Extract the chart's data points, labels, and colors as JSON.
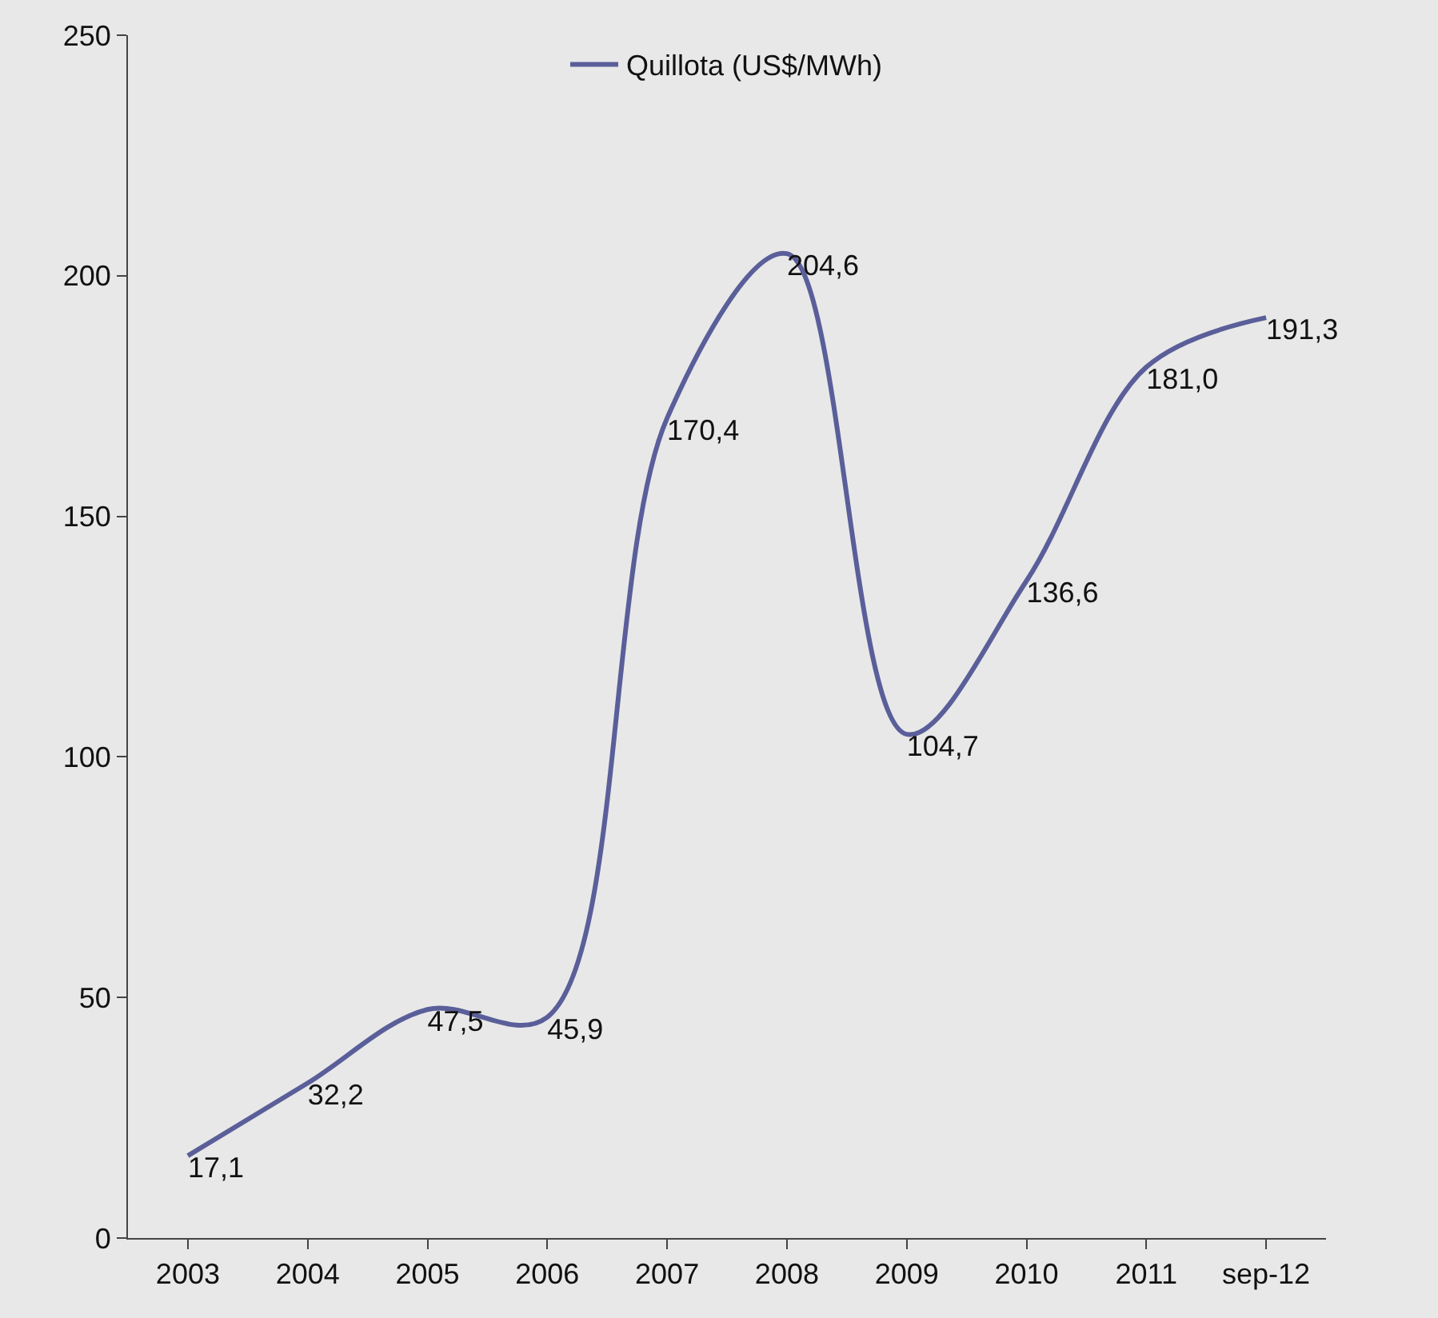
{
  "chart_data": {
    "type": "line",
    "categories": [
      "2003",
      "2004",
      "2005",
      "2006",
      "2007",
      "2008",
      "2009",
      "2010",
      "2011",
      "sep-12"
    ],
    "series": [
      {
        "name": "Quillota (US$/MWh)",
        "color": "#5a5f9a",
        "values": [
          17.1,
          32.2,
          47.5,
          45.9,
          170.4,
          204.6,
          104.7,
          136.6,
          181.0,
          191.3
        ],
        "value_labels": [
          "17,1",
          "32,2",
          "47,5",
          "45,9",
          "170,4",
          "204,6",
          "104,7",
          "136,6",
          "181,0",
          "191,3"
        ]
      }
    ],
    "ylim": [
      0,
      250
    ],
    "yticks": [
      0,
      50,
      100,
      150,
      200,
      250
    ],
    "grid": false,
    "legend": "top",
    "marker": "none",
    "line_style": "solid"
  }
}
